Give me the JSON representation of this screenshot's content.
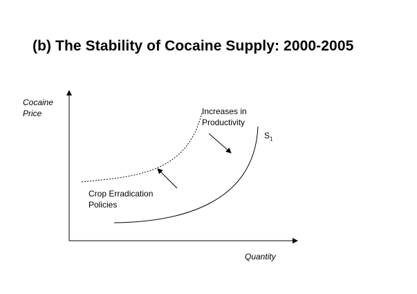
{
  "title": "(b) The Stability of Cocaine Supply: 2000-2005",
  "y_axis": {
    "line1": "Cocaine",
    "line2": "Price"
  },
  "x_axis": {
    "label": "Quantity"
  },
  "annotations": {
    "productivity": {
      "line1": "Increases in",
      "line2": "Productivity"
    },
    "eradication": {
      "line1": "Crop Erradication",
      "line2": "Policies"
    }
  },
  "curve_label": {
    "base": "S",
    "subscript": "1"
  }
}
